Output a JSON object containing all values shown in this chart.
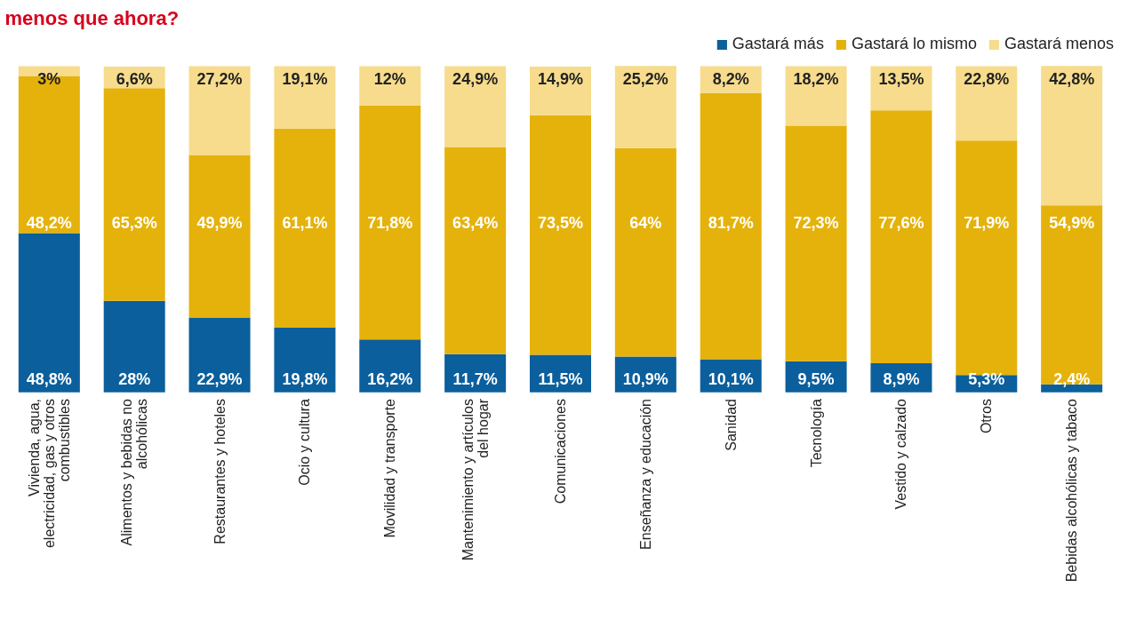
{
  "chart_data": {
    "type": "bar",
    "stacked": true,
    "title": "menos que ahora?",
    "legend": "top right",
    "categories": [
      "Vivienda, agua, electricidad, gas y otros combustibles",
      "Alimentos y bebidas no alcohólicas",
      "Restaurantes y hoteles",
      "Ocio y cultura",
      "Movilidad y transporte",
      "Mantenimiento y artículos del hogar",
      "Comunicaciones",
      "Enseñanza y educación",
      "Sanidad",
      "Tecnología",
      "Vestido y calzado",
      "Otros",
      "Bebidas alcohólicas y tabaco"
    ],
    "series": [
      {
        "name": "Gastará más",
        "color": "#0b5f9c",
        "values": [
          48.8,
          28,
          22.9,
          19.8,
          16.2,
          11.7,
          11.5,
          10.9,
          10.1,
          9.5,
          8.9,
          5.3,
          2.4
        ],
        "value_labels": [
          "48,8%",
          "28%",
          "22,9%",
          "19,8%",
          "16,2%",
          "11,7%",
          "11,5%",
          "10,9%",
          "10,1%",
          "9,5%",
          "8,9%",
          "5,3%",
          "2,4%"
        ]
      },
      {
        "name": "Gastará lo mismo",
        "color": "#e5b20c",
        "values": [
          48.2,
          65.3,
          49.9,
          61.1,
          71.8,
          63.4,
          73.5,
          64,
          81.7,
          72.3,
          77.6,
          71.9,
          54.9
        ],
        "value_labels": [
          "48,2%",
          "65,3%",
          "49,9%",
          "61,1%",
          "71,8%",
          "63,4%",
          "73,5%",
          "64%",
          "81,7%",
          "72,3%",
          "77,6%",
          "71,9%",
          "54,9%"
        ]
      },
      {
        "name": "Gastará menos",
        "color": "#f6dc8c",
        "values": [
          3,
          6.6,
          27.2,
          19.1,
          12,
          24.9,
          14.9,
          25.2,
          8.2,
          18.2,
          13.5,
          22.8,
          42.8
        ],
        "value_labels": [
          "3%",
          "6,6%",
          "27,2%",
          "19,1%",
          "12%",
          "24,9%",
          "14,9%",
          "25,2%",
          "8,2%",
          "18,2%",
          "13,5%",
          "22,8%",
          "42,8%"
        ]
      }
    ]
  }
}
